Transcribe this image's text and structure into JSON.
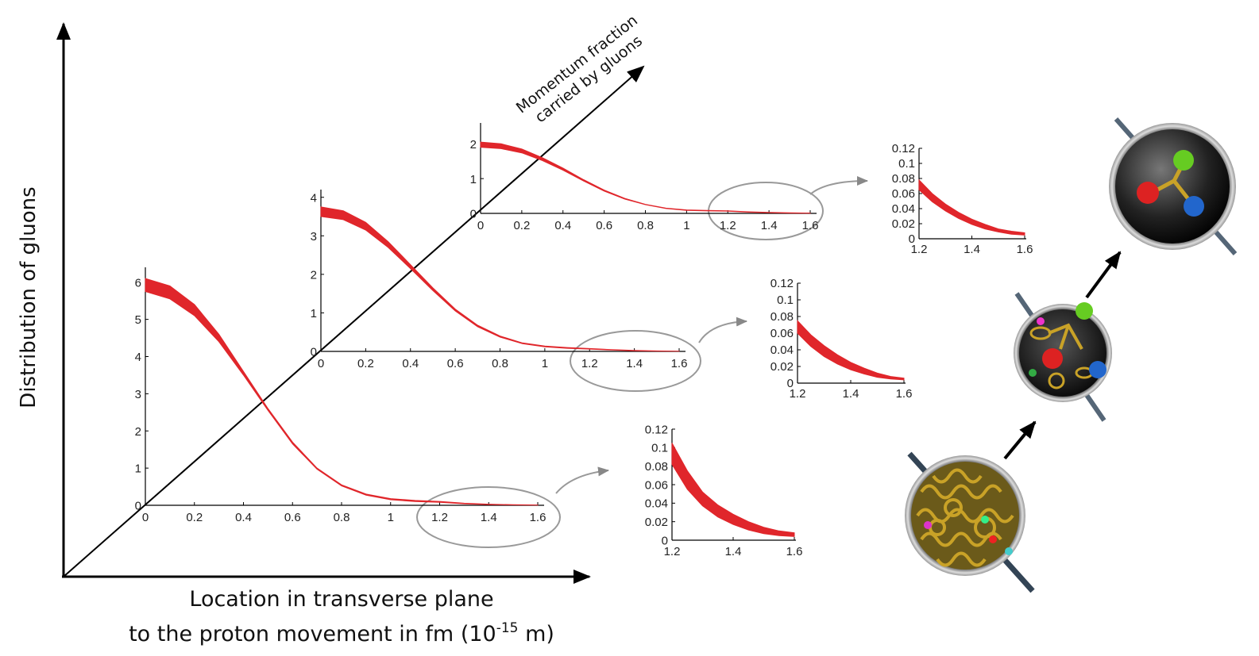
{
  "figure": {
    "y_axis_label": "Distribution of gluons",
    "x_axis_label_line1": "Location in transverse plane",
    "x_axis_label_line2": {
      "text": "to the proton movement in fm (10",
      "superscript": "-15",
      "end": " m)"
    },
    "z_axis_label": [
      "Momentum fraction",
      "carried by gluons"
    ]
  },
  "chart_data": [
    {
      "type": "band",
      "color": "#e0262b",
      "x": [
        0,
        0.1,
        0.2,
        0.3,
        0.4,
        0.5,
        0.6,
        0.7,
        0.8,
        0.9,
        1.0,
        1.1,
        1.2,
        1.3,
        1.4,
        1.5,
        1.6
      ],
      "upper": [
        6.1,
        5.9,
        5.4,
        4.6,
        3.6,
        2.6,
        1.7,
        1.0,
        0.55,
        0.3,
        0.18,
        0.13,
        0.105,
        0.055,
        0.03,
        0.015,
        0.008
      ],
      "lower": [
        5.75,
        5.55,
        5.1,
        4.4,
        3.5,
        2.55,
        1.65,
        0.97,
        0.52,
        0.27,
        0.15,
        0.1,
        0.08,
        0.04,
        0.02,
        0.01,
        0.004
      ],
      "xlim": [
        0,
        1.6
      ],
      "ylim": [
        0,
        6.4
      ],
      "xticks": [
        0,
        0.2,
        0.4,
        0.6,
        0.8,
        1,
        1.2,
        1.4,
        1.6
      ],
      "yticks": [
        0,
        1,
        2,
        3,
        4,
        5,
        6
      ]
    },
    {
      "type": "band",
      "color": "#e0262b",
      "x": [
        0,
        0.1,
        0.2,
        0.3,
        0.4,
        0.5,
        0.6,
        0.7,
        0.8,
        0.9,
        1.0,
        1.1,
        1.2,
        1.3,
        1.4,
        1.5,
        1.6
      ],
      "upper": [
        3.75,
        3.65,
        3.35,
        2.85,
        2.25,
        1.65,
        1.1,
        0.68,
        0.4,
        0.22,
        0.14,
        0.1,
        0.075,
        0.045,
        0.025,
        0.012,
        0.006
      ],
      "lower": [
        3.5,
        3.42,
        3.15,
        2.7,
        2.15,
        1.58,
        1.05,
        0.64,
        0.37,
        0.2,
        0.12,
        0.08,
        0.06,
        0.035,
        0.017,
        0.008,
        0.004
      ],
      "xlim": [
        0,
        1.6
      ],
      "ylim": [
        0,
        4.2
      ],
      "xticks": [
        0,
        0.2,
        0.4,
        0.6,
        0.8,
        1,
        1.2,
        1.4,
        1.6
      ],
      "yticks": [
        0,
        1,
        2,
        3,
        4
      ]
    },
    {
      "type": "band",
      "color": "#e0262b",
      "x": [
        0,
        0.1,
        0.2,
        0.3,
        0.4,
        0.5,
        0.6,
        0.7,
        0.8,
        0.9,
        1.0,
        1.1,
        1.2,
        1.3,
        1.4,
        1.5,
        1.6
      ],
      "upper": [
        2.05,
        2.0,
        1.85,
        1.6,
        1.3,
        0.97,
        0.67,
        0.43,
        0.26,
        0.15,
        0.1,
        0.085,
        0.075,
        0.045,
        0.027,
        0.015,
        0.008
      ],
      "lower": [
        1.9,
        1.86,
        1.74,
        1.52,
        1.24,
        0.93,
        0.64,
        0.41,
        0.25,
        0.14,
        0.085,
        0.07,
        0.062,
        0.035,
        0.02,
        0.01,
        0.005
      ],
      "xlim": [
        0,
        1.6
      ],
      "ylim": [
        0,
        2.6
      ],
      "xticks": [
        0,
        0.2,
        0.4,
        0.6,
        0.8,
        1,
        1.2,
        1.4,
        1.6
      ],
      "yticks": [
        0,
        1,
        2
      ]
    },
    {
      "type": "band",
      "color": "#e0262b",
      "x": [
        1.2,
        1.25,
        1.3,
        1.35,
        1.4,
        1.45,
        1.5,
        1.55,
        1.6
      ],
      "upper": [
        0.105,
        0.075,
        0.052,
        0.038,
        0.028,
        0.02,
        0.014,
        0.01,
        0.008
      ],
      "lower": [
        0.082,
        0.055,
        0.037,
        0.025,
        0.017,
        0.011,
        0.007,
        0.005,
        0.004
      ],
      "xlim": [
        1.2,
        1.6
      ],
      "ylim": [
        0,
        0.12
      ],
      "xticks": [
        1.2,
        1.4,
        1.6
      ],
      "yticks": [
        0,
        0.02,
        0.04,
        0.06,
        0.08,
        0.1,
        0.12
      ]
    },
    {
      "type": "band",
      "color": "#e0262b",
      "x": [
        1.2,
        1.25,
        1.3,
        1.35,
        1.4,
        1.45,
        1.5,
        1.55,
        1.6
      ],
      "upper": [
        0.075,
        0.058,
        0.045,
        0.034,
        0.025,
        0.018,
        0.012,
        0.008,
        0.006
      ],
      "lower": [
        0.06,
        0.044,
        0.032,
        0.023,
        0.016,
        0.011,
        0.007,
        0.005,
        0.004
      ],
      "xlim": [
        1.2,
        1.6
      ],
      "ylim": [
        0,
        0.12
      ],
      "xticks": [
        1.2,
        1.4,
        1.6
      ],
      "yticks": [
        0,
        0.02,
        0.04,
        0.06,
        0.08,
        0.1,
        0.12
      ]
    },
    {
      "type": "band",
      "color": "#e0262b",
      "x": [
        1.2,
        1.25,
        1.3,
        1.35,
        1.4,
        1.45,
        1.5,
        1.55,
        1.6
      ],
      "upper": [
        0.078,
        0.06,
        0.046,
        0.035,
        0.026,
        0.019,
        0.013,
        0.01,
        0.008
      ],
      "lower": [
        0.065,
        0.049,
        0.037,
        0.027,
        0.019,
        0.013,
        0.009,
        0.006,
        0.005
      ],
      "xlim": [
        1.2,
        1.6
      ],
      "ylim": [
        0,
        0.12
      ],
      "xticks": [
        1.2,
        1.4,
        1.6
      ],
      "yticks": [
        0,
        0.02,
        0.04,
        0.06,
        0.08,
        0.1,
        0.12
      ]
    }
  ]
}
